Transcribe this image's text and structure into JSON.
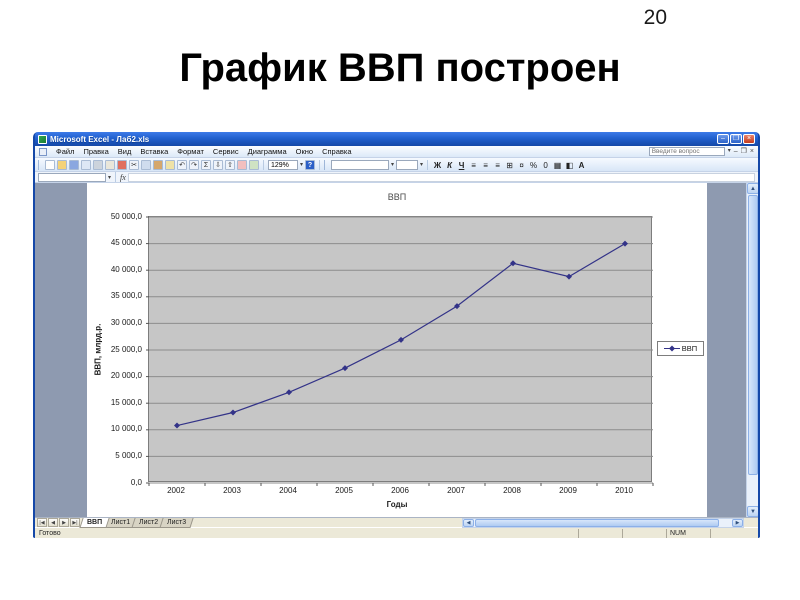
{
  "slide": {
    "page_number": "20",
    "title": "График ВВП построен"
  },
  "window": {
    "title": "Microsoft Excel - Лаб2.xls",
    "menu": {
      "items": [
        "Файл",
        "Правка",
        "Вид",
        "Вставка",
        "Формат",
        "Сервис",
        "Диаграмма",
        "Окно",
        "Справка"
      ],
      "question_placeholder": "Введите вопрос"
    },
    "toolbar": {
      "standard_icons": [
        {
          "name": "new-document-icon",
          "color": "#fdfdfd",
          "glyph": ""
        },
        {
          "name": "open-icon",
          "color": "#f4d278",
          "glyph": ""
        },
        {
          "name": "save-icon",
          "color": "#8aa7e0",
          "glyph": ""
        },
        {
          "name": "email-icon",
          "color": "#dde7f5",
          "glyph": ""
        },
        {
          "name": "print-icon",
          "color": "#ccd3dc",
          "glyph": ""
        },
        {
          "name": "print-preview-icon",
          "color": "#e9e6da",
          "glyph": ""
        },
        {
          "name": "spelling-icon",
          "color": "#df6f5f",
          "glyph": ""
        },
        {
          "name": "cut-icon",
          "color": "#eef3fa",
          "glyph": "✂"
        },
        {
          "name": "copy-icon",
          "color": "#cfdcee",
          "glyph": ""
        },
        {
          "name": "paste-icon",
          "color": "#d5a76c",
          "glyph": ""
        },
        {
          "name": "format-painter-icon",
          "color": "#efe2a6",
          "glyph": ""
        },
        {
          "name": "undo-icon",
          "color": "#eef3fa",
          "glyph": "↶"
        },
        {
          "name": "redo-icon",
          "color": "#eef3fa",
          "glyph": "↷"
        },
        {
          "name": "autosum-icon",
          "color": "#eef3fa",
          "glyph": "Σ"
        },
        {
          "name": "sort-ascending-icon",
          "color": "#eef3fa",
          "glyph": "⇩"
        },
        {
          "name": "sort-descending-icon",
          "color": "#eef3fa",
          "glyph": "⇧"
        },
        {
          "name": "chart-wizard-icon",
          "color": "#f2bfbf",
          "glyph": ""
        },
        {
          "name": "drawing-icon",
          "color": "#cfe3c3",
          "glyph": ""
        }
      ],
      "zoom_value": "129%",
      "help_glyph": "?",
      "formatting_icons": [
        {
          "name": "bold-button",
          "glyph": "Ж",
          "cls": "b"
        },
        {
          "name": "italic-button",
          "glyph": "К",
          "cls": "i"
        },
        {
          "name": "underline-button",
          "glyph": "Ч",
          "cls": "u"
        },
        {
          "name": "align-left-icon",
          "glyph": "≡",
          "cls": ""
        },
        {
          "name": "align-center-icon",
          "glyph": "≡",
          "cls": ""
        },
        {
          "name": "align-right-icon",
          "glyph": "≡",
          "cls": ""
        },
        {
          "name": "merge-center-icon",
          "glyph": "⊞",
          "cls": ""
        },
        {
          "name": "currency-icon",
          "glyph": "¤",
          "cls": ""
        },
        {
          "name": "percent-icon",
          "glyph": "%",
          "cls": ""
        },
        {
          "name": "comma-style-icon",
          "glyph": "0",
          "cls": ""
        },
        {
          "name": "borders-icon",
          "glyph": "▦",
          "cls": ""
        },
        {
          "name": "fill-color-icon",
          "glyph": "◧",
          "cls": ""
        },
        {
          "name": "font-color-icon",
          "glyph": "А",
          "cls": "b"
        }
      ]
    },
    "formula_bar": {
      "name_box_value": "",
      "fx_label": "fx"
    },
    "sheet_nav_buttons": [
      "|◀",
      "◀",
      "▶",
      "▶|"
    ],
    "sheet_tabs": [
      {
        "label": "ВВП",
        "active": true
      },
      {
        "label": "Лист1",
        "active": false
      },
      {
        "label": "Лист2",
        "active": false
      },
      {
        "label": "Лист3",
        "active": false
      }
    ],
    "status_bar": {
      "ready_label": "Готово",
      "num_label": "NUM"
    }
  },
  "chart_data": {
    "type": "line",
    "title": "ВВП",
    "xlabel": "Годы",
    "ylabel": "ВВП, млрд.р.",
    "categories": [
      "2002",
      "2003",
      "2004",
      "2005",
      "2006",
      "2007",
      "2008",
      "2009",
      "2010"
    ],
    "series": [
      {
        "name": "ВВП",
        "values": [
          10800,
          13250,
          17050,
          21600,
          26900,
          33250,
          41300,
          38800,
          45000
        ]
      }
    ],
    "ylim": [
      0,
      50000
    ],
    "ytick_step": 5000,
    "ytick_labels": [
      "0,0",
      "5 000,0",
      "10 000,0",
      "15 000,0",
      "20 000,0",
      "25 000,0",
      "30 000,0",
      "35 000,0",
      "40 000,0",
      "45 000,0",
      "50 000,0"
    ],
    "grid": true,
    "legend_position": "right",
    "colors": {
      "series_line": "#333388",
      "plot_bg": "#C6C6C6",
      "gridline": "#8c8c8c"
    }
  }
}
